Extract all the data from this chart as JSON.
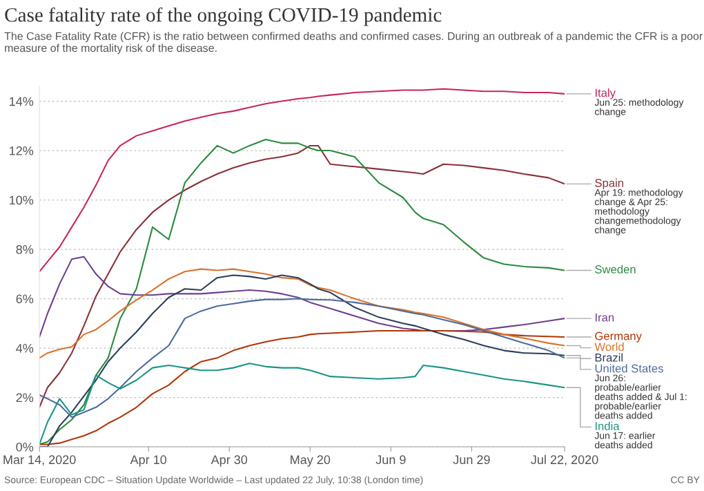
{
  "chart_data": {
    "type": "line",
    "title": "Case fatality rate of the ongoing COVID-19 pandemic",
    "subtitle": "The Case Fatality Rate (CFR) is the ratio between confirmed deaths and confirmed cases. During an outbreak of a pandemic the CFR is a poor measure of the mortality risk of the disease.",
    "x": [
      "2020-03-14",
      "2020-03-16",
      "2020-03-19",
      "2020-03-22",
      "2020-03-25",
      "2020-03-28",
      "2020-03-31",
      "2020-04-03",
      "2020-04-07",
      "2020-04-11",
      "2020-04-15",
      "2020-04-19",
      "2020-04-23",
      "2020-04-27",
      "2020-05-01",
      "2020-05-05",
      "2020-05-09",
      "2020-05-13",
      "2020-05-17",
      "2020-05-20",
      "2020-05-22",
      "2020-05-25",
      "2020-05-31",
      "2020-06-06",
      "2020-06-12",
      "2020-06-15",
      "2020-06-17",
      "2020-06-22",
      "2020-06-27",
      "2020-07-02",
      "2020-07-07",
      "2020-07-12",
      "2020-07-18",
      "2020-07-22"
    ],
    "series": [
      {
        "name": "Italy",
        "color": "#c9245e",
        "values": [
          7.1,
          7.5,
          8.1,
          8.9,
          9.7,
          10.6,
          11.6,
          12.2,
          12.6,
          12.8,
          13.0,
          13.2,
          13.35,
          13.5,
          13.6,
          13.75,
          13.9,
          14.0,
          14.1,
          14.15,
          14.2,
          14.25,
          14.35,
          14.4,
          14.45,
          14.45,
          14.45,
          14.5,
          14.45,
          14.4,
          14.4,
          14.35,
          14.35,
          14.3
        ]
      },
      {
        "name": "Spain",
        "color": "#883039",
        "values": [
          1.6,
          2.4,
          3.0,
          3.8,
          4.9,
          6.1,
          7.0,
          7.9,
          8.8,
          9.5,
          10.0,
          10.4,
          10.75,
          11.05,
          11.3,
          11.5,
          11.65,
          11.75,
          11.9,
          12.2,
          12.2,
          11.45,
          11.35,
          11.25,
          11.15,
          11.1,
          11.05,
          11.45,
          11.4,
          11.3,
          11.2,
          11.05,
          10.9,
          10.65
        ]
      },
      {
        "name": "Sweden",
        "color": "#2a8a3e",
        "values": [
          0.1,
          0.2,
          0.7,
          1.1,
          1.7,
          2.9,
          3.6,
          5.2,
          6.4,
          8.9,
          8.4,
          10.7,
          11.5,
          12.2,
          11.9,
          12.2,
          12.45,
          12.3,
          12.3,
          12.1,
          12.0,
          12.0,
          11.75,
          10.7,
          10.1,
          9.5,
          9.25,
          9.0,
          8.3,
          7.65,
          7.4,
          7.3,
          7.25,
          7.15
        ]
      },
      {
        "name": "Iran",
        "color": "#6d3e91",
        "values": [
          4.45,
          5.4,
          6.6,
          7.6,
          7.7,
          7.0,
          6.5,
          6.2,
          6.15,
          6.15,
          6.2,
          6.2,
          6.2,
          6.25,
          6.3,
          6.35,
          6.3,
          6.2,
          6.05,
          5.85,
          5.75,
          5.6,
          5.3,
          5.0,
          4.8,
          4.75,
          4.7,
          4.7,
          4.7,
          4.75,
          4.85,
          4.95,
          5.1,
          5.2
        ]
      },
      {
        "name": "Germany",
        "color": "#b13507",
        "values": [
          0.1,
          0.1,
          0.15,
          0.3,
          0.45,
          0.65,
          0.95,
          1.2,
          1.6,
          2.15,
          2.5,
          3.05,
          3.45,
          3.6,
          3.9,
          4.1,
          4.25,
          4.38,
          4.45,
          4.55,
          4.58,
          4.6,
          4.65,
          4.7,
          4.7,
          4.7,
          4.7,
          4.7,
          4.68,
          4.65,
          4.55,
          4.5,
          4.47,
          4.45
        ]
      },
      {
        "name": "World",
        "color": "#d9712c",
        "values": [
          3.6,
          3.8,
          3.95,
          4.05,
          4.55,
          4.75,
          5.1,
          5.5,
          5.95,
          6.35,
          6.8,
          7.1,
          7.2,
          7.15,
          7.2,
          7.1,
          7.0,
          6.85,
          6.8,
          6.55,
          6.45,
          6.35,
          6.0,
          5.7,
          5.55,
          5.45,
          5.4,
          5.25,
          5.0,
          4.75,
          4.55,
          4.4,
          4.2,
          4.1
        ]
      },
      {
        "name": "Brazil",
        "color": "#2c3e5a",
        "values": [
          0.0,
          0.0,
          0.85,
          1.4,
          2.05,
          2.7,
          3.45,
          4.0,
          4.65,
          5.4,
          6.05,
          6.4,
          6.35,
          6.85,
          6.95,
          6.9,
          6.8,
          6.95,
          6.85,
          6.6,
          6.4,
          6.25,
          5.65,
          5.25,
          5.0,
          4.9,
          4.8,
          4.55,
          4.35,
          4.1,
          3.9,
          3.8,
          3.77,
          3.7
        ]
      },
      {
        "name": "United States",
        "color": "#4c6a9c",
        "values": [
          2.1,
          1.95,
          1.7,
          1.2,
          1.4,
          1.6,
          1.95,
          2.4,
          3.05,
          3.6,
          4.1,
          5.2,
          5.5,
          5.7,
          5.8,
          5.9,
          5.97,
          5.97,
          6.0,
          5.97,
          5.96,
          5.95,
          5.85,
          5.7,
          5.5,
          5.4,
          5.35,
          5.15,
          4.95,
          4.7,
          4.45,
          4.2,
          3.9,
          3.6
        ]
      },
      {
        "name": "India",
        "color": "#1a9485",
        "values": [
          0.1,
          1.0,
          1.95,
          1.3,
          1.5,
          2.9,
          2.6,
          2.35,
          2.7,
          3.2,
          3.3,
          3.2,
          3.1,
          3.1,
          3.2,
          3.38,
          3.25,
          3.2,
          3.2,
          3.1,
          3.0,
          2.85,
          2.8,
          2.75,
          2.8,
          2.85,
          3.3,
          3.2,
          3.05,
          2.9,
          2.75,
          2.65,
          2.5,
          2.4
        ]
      }
    ],
    "xlim": [
      "2020-03-14",
      "2020-07-22"
    ],
    "xticks": [
      {
        "value": "2020-03-14",
        "label": "Mar 14, 2020"
      },
      {
        "value": "2020-04-10",
        "label": "Apr 10"
      },
      {
        "value": "2020-04-30",
        "label": "Apr 30"
      },
      {
        "value": "2020-05-20",
        "label": "May 20"
      },
      {
        "value": "2020-06-09",
        "label": "Jun 9"
      },
      {
        "value": "2020-06-29",
        "label": "Jun 29"
      },
      {
        "value": "2020-07-22",
        "label": "Jul 22, 2020"
      }
    ],
    "ylim": [
      0,
      14.6
    ],
    "yticks": [
      {
        "value": 0,
        "label": "0%"
      },
      {
        "value": 2,
        "label": "2%"
      },
      {
        "value": 4,
        "label": "4%"
      },
      {
        "value": 6,
        "label": "6%"
      },
      {
        "value": 8,
        "label": "8%"
      },
      {
        "value": 10,
        "label": "10%"
      },
      {
        "value": 12,
        "label": "12%"
      },
      {
        "value": 14,
        "label": "14%"
      }
    ],
    "grid": "y",
    "legend": false,
    "annotations": [
      {
        "text": "Jun 25: methodology change",
        "x": "2020-07-22",
        "y": 14.3
      },
      {
        "text": "Apr 19: methodology change & Apr 25: methodology changemethodology change",
        "x": "2020-07-22",
        "y": 10.65
      },
      {
        "text": "Jun 26: probable/earlier deaths added & Jul 1: probable/earlier deaths added",
        "x": "2020-07-22",
        "y": 3.6
      },
      {
        "text": "Jun 17: earlier deaths added",
        "x": "2020-07-22",
        "y": 2.4
      },
      "Source: European CDC – Situation Update Worldwide – Last updated 22 July, 10:38 (London time)",
      "CC BY"
    ]
  }
}
